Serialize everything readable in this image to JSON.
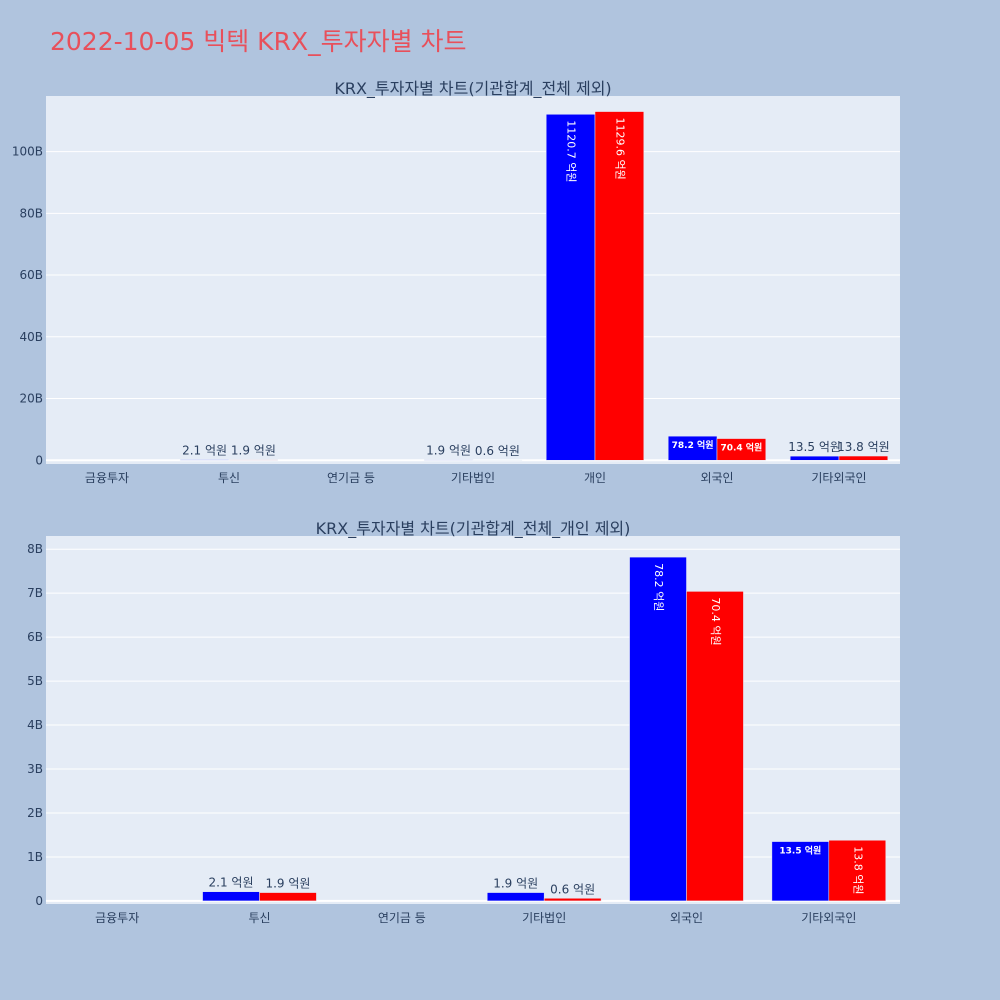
{
  "title": "2022-10-05 빅텍 KRX_투자자별 차트",
  "chart_data": [
    {
      "type": "bar",
      "title": "KRX_투자자별 차트(기관합계_전체 제외)",
      "categories": [
        "금융투자",
        "투신",
        "연기금 등",
        "기타법인",
        "개인",
        "외국인",
        "기타외국인"
      ],
      "series": [
        {
          "color": "#0000ff",
          "values": [
            0,
            0.21,
            0,
            0.19,
            112.07,
            7.82,
            1.35
          ],
          "labels": [
            "",
            "2.1 억원",
            "",
            "1.9 억원",
            "1120.7 억원",
            "78.2 억원",
            "13.5 억원"
          ]
        },
        {
          "color": "#ff0000",
          "values": [
            0,
            0.19,
            0,
            0.06,
            112.96,
            7.04,
            1.38
          ],
          "labels": [
            "",
            "1.9 억원",
            "",
            "0.6 억원",
            "1129.6 억원",
            "70.4 억원",
            "13.8 억원"
          ]
        }
      ],
      "yticks": [
        0,
        20,
        40,
        60,
        80,
        100
      ],
      "ytick_labels": [
        "0",
        "20B",
        "40B",
        "60B",
        "80B",
        "100B"
      ],
      "ylim": [
        -1.2,
        118
      ],
      "grid": true,
      "plot_bg": "#e5ecf6"
    },
    {
      "type": "bar",
      "title": "KRX_투자자별 차트(기관합계_전체_개인 제외)",
      "categories": [
        "금융투자",
        "투신",
        "연기금 등",
        "기타법인",
        "외국인",
        "기타외국인"
      ],
      "series": [
        {
          "color": "#0000ff",
          "values": [
            0,
            0.21,
            0,
            0.19,
            7.82,
            1.35
          ],
          "labels": [
            "",
            "2.1 억원",
            "",
            "1.9 억원",
            "78.2 억원",
            "13.5 억원"
          ]
        },
        {
          "color": "#ff0000",
          "values": [
            0,
            0.19,
            0,
            0.06,
            7.04,
            1.38
          ],
          "labels": [
            "",
            "1.9 억원",
            "",
            "0.6 억원",
            "70.4 억원",
            "13.8 억원"
          ]
        }
      ],
      "yticks": [
        0,
        1,
        2,
        3,
        4,
        5,
        6,
        7,
        8
      ],
      "ytick_labels": [
        "0",
        "1B",
        "2B",
        "3B",
        "4B",
        "5B",
        "6B",
        "7B",
        "8B"
      ],
      "ylim": [
        -0.07,
        8.3
      ],
      "grid": true,
      "plot_bg": "#e5ecf6"
    }
  ]
}
